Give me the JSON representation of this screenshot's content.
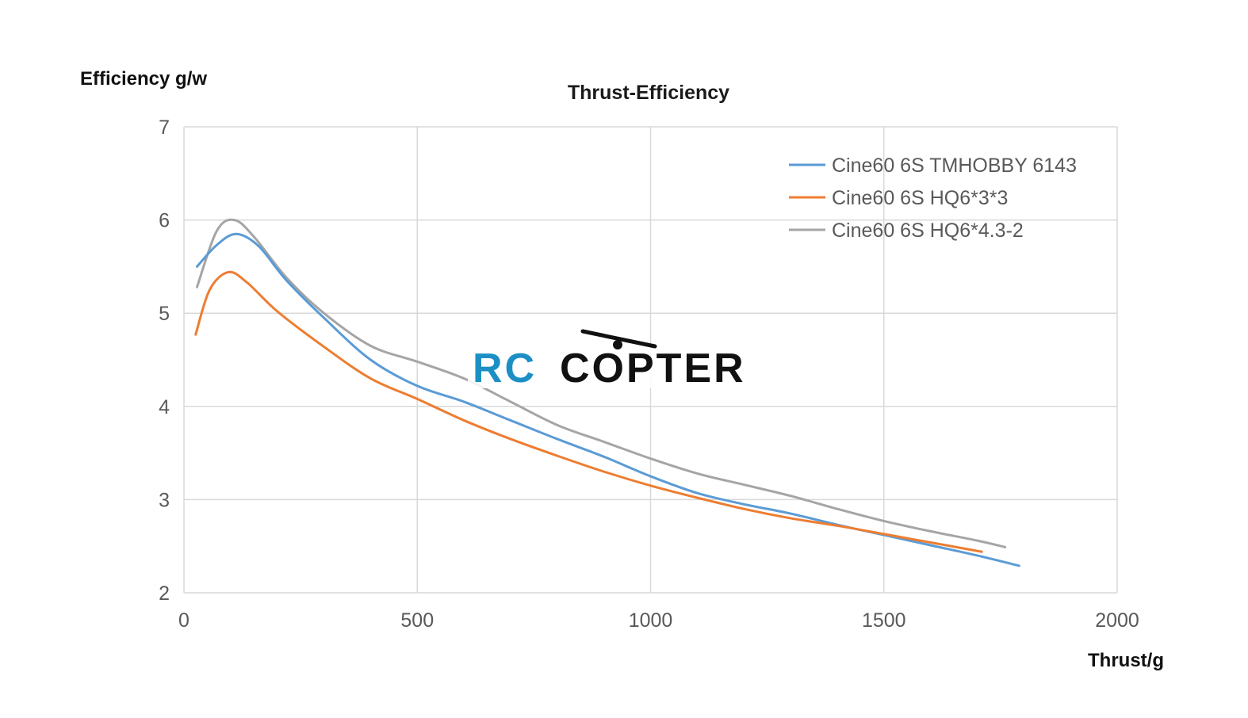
{
  "colors": {
    "background": "#ffffff",
    "grid": "#d9d9d9",
    "tick_text": "#595959",
    "watermark_rc": "#1c8fc4",
    "watermark_copter": "#111111"
  },
  "watermark": {
    "part1": "RC",
    "part2": "COPTER"
  },
  "chart_data": {
    "type": "line",
    "title": "Thrust-Efficiency",
    "xlabel": "Thrust/g",
    "ylabel": "Efficiency g/w",
    "xlim": [
      0,
      2000
    ],
    "ylim": [
      2,
      7
    ],
    "xticks": [
      0,
      500,
      1000,
      1500,
      2000
    ],
    "yticks": [
      2,
      3,
      4,
      5,
      6,
      7
    ],
    "grid": true,
    "legend_position": "top-right",
    "series": [
      {
        "name": "Cine60 6S TMHOBBY 6143",
        "color": "#5b9bd5",
        "x": [
          28,
          70,
          112,
          160,
          220,
          300,
          400,
          500,
          600,
          700,
          800,
          900,
          1000,
          1100,
          1200,
          1300,
          1400,
          1500,
          1600,
          1700,
          1790
        ],
        "y": [
          5.5,
          5.73,
          5.85,
          5.72,
          5.35,
          4.95,
          4.5,
          4.22,
          4.05,
          3.85,
          3.65,
          3.46,
          3.25,
          3.07,
          2.95,
          2.85,
          2.73,
          2.62,
          2.51,
          2.4,
          2.29
        ]
      },
      {
        "name": "Cine60 6S HQ6*3*3",
        "color": "#ed7d31",
        "x": [
          25,
          55,
          95,
          135,
          200,
          300,
          400,
          500,
          600,
          700,
          800,
          900,
          1000,
          1100,
          1200,
          1300,
          1400,
          1500,
          1600,
          1710
        ],
        "y": [
          4.77,
          5.25,
          5.44,
          5.33,
          5.02,
          4.64,
          4.3,
          4.08,
          3.85,
          3.65,
          3.47,
          3.3,
          3.15,
          3.02,
          2.9,
          2.8,
          2.72,
          2.63,
          2.54,
          2.44
        ]
      },
      {
        "name": "Cine60 6S HQ6*4.3-2",
        "color": "#a5a5a5",
        "x": [
          28,
          70,
          108,
          150,
          220,
          300,
          400,
          500,
          600,
          700,
          800,
          900,
          1000,
          1100,
          1200,
          1300,
          1400,
          1500,
          1600,
          1700,
          1760
        ],
        "y": [
          5.28,
          5.88,
          6.0,
          5.82,
          5.38,
          5.0,
          4.65,
          4.48,
          4.3,
          4.05,
          3.8,
          3.62,
          3.44,
          3.28,
          3.16,
          3.04,
          2.9,
          2.77,
          2.66,
          2.56,
          2.49
        ]
      }
    ]
  }
}
